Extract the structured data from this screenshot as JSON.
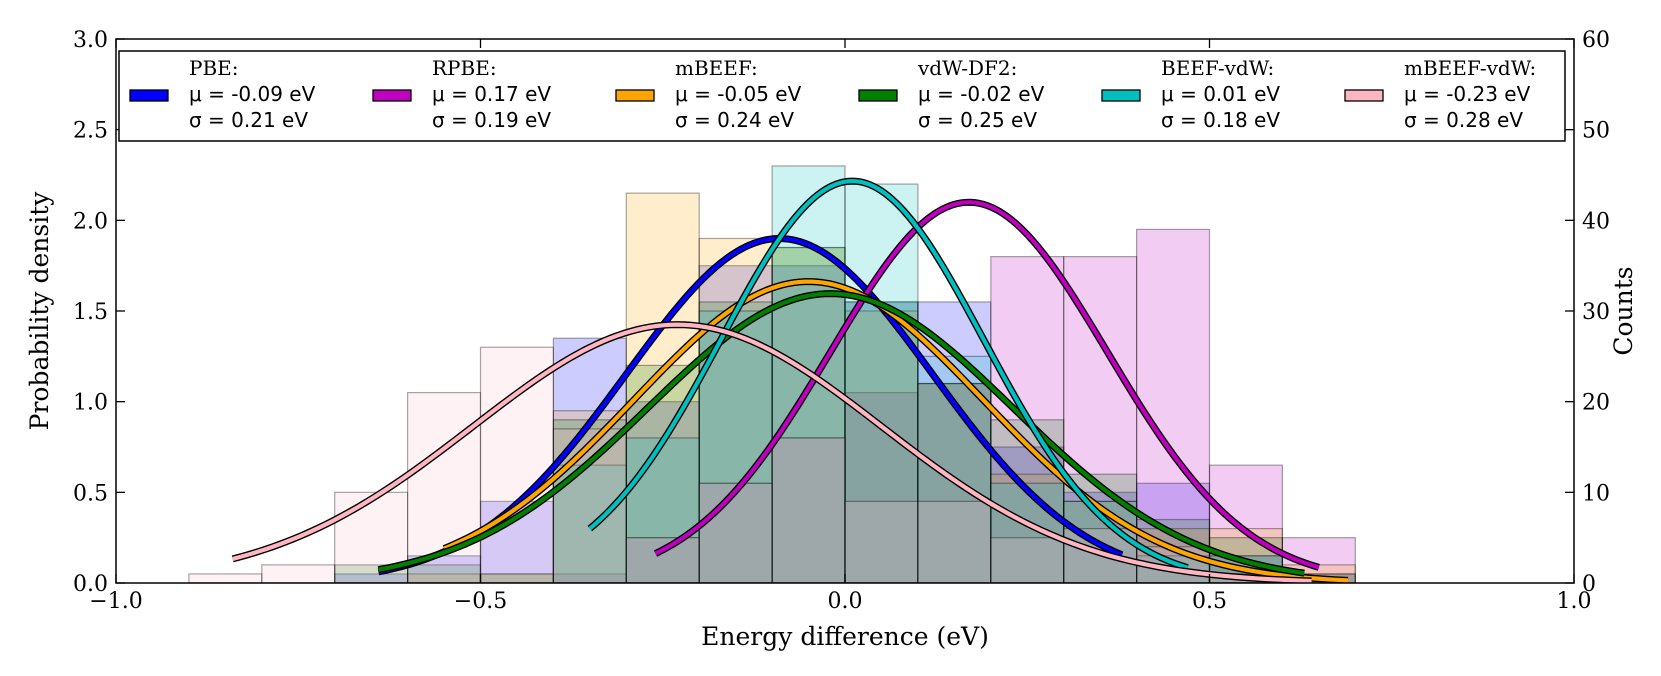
{
  "chart_data": {
    "type": "histogram+line",
    "xlabel": "Energy difference (eV)",
    "ylabel": "Probability density",
    "ylabel_right": "Counts",
    "xlim": [
      -1.0,
      1.0
    ],
    "ylim": [
      0.0,
      3.0
    ],
    "ylim_right": [
      0,
      60
    ],
    "x_ticks": [
      -1.0,
      -0.5,
      0.0,
      0.5,
      1.0
    ],
    "x_tick_labels": [
      "−1.0",
      "−0.5",
      "0.0",
      "0.5",
      "1.0"
    ],
    "y_ticks": [
      0.0,
      0.5,
      1.0,
      1.5,
      2.0,
      2.5,
      3.0
    ],
    "y_tick_labels": [
      "0.0",
      "0.5",
      "1.0",
      "1.5",
      "2.0",
      "2.5",
      "3.0"
    ],
    "y2_ticks": [
      0,
      10,
      20,
      30,
      40,
      50,
      60
    ],
    "y2_tick_labels": [
      "0",
      "10",
      "20",
      "30",
      "40",
      "50",
      "60"
    ],
    "bin_edges": [
      -0.9,
      -0.8,
      -0.7,
      -0.6,
      -0.5,
      -0.4,
      -0.3,
      -0.2,
      -0.1,
      0.0,
      0.1,
      0.2,
      0.3,
      0.4,
      0.5,
      0.6,
      0.7
    ],
    "legend_location": "top (inside, single row)",
    "series": [
      {
        "name": "PBE",
        "label": "PBE:",
        "mu_text": "μ = -0.09 eV",
        "sigma_text": "σ = 0.21 eV",
        "mu": -0.09,
        "sigma": 0.21,
        "curve_range": [
          -0.64,
          0.38
        ],
        "color": "#0000ff",
        "hist_color": "#0000ff",
        "hist_values": [
          0,
          0,
          0.05,
          0.15,
          0.45,
          1.35,
          1.0,
          1.75,
          1.75,
          1.55,
          1.55,
          0.75,
          0.5,
          0.55,
          0.15,
          0.05
        ]
      },
      {
        "name": "RPBE",
        "label": "RPBE:",
        "mu_text": "μ = 0.17 eV",
        "sigma_text": "σ = 0.19 eV",
        "mu": 0.17,
        "sigma": 0.19,
        "curve_range": [
          -0.26,
          0.65
        ],
        "color": "#bf00bf",
        "hist_color": "#bf00bf",
        "hist_values": [
          0,
          0,
          0,
          0,
          0,
          0.05,
          0.25,
          0.55,
          0.8,
          1.05,
          1.1,
          1.8,
          1.8,
          1.95,
          0.65,
          0.25
        ]
      },
      {
        "name": "mBEEF",
        "label": "mBEEF:",
        "mu_text": "μ = -0.05 eV",
        "sigma_text": "σ = 0.24 eV",
        "mu": -0.05,
        "sigma": 0.24,
        "curve_range": [
          -0.55,
          0.69
        ],
        "color": "#ffa500",
        "hist_color": "#ffa500",
        "hist_values": [
          0,
          0,
          0,
          0.05,
          0.05,
          0.95,
          2.15,
          1.9,
          1.85,
          1.5,
          1.1,
          0.6,
          0.45,
          0.3,
          0.3,
          0.1
        ]
      },
      {
        "name": "vdW-DF2",
        "label": "vdW-DF2:",
        "mu_text": "μ = -0.02 eV",
        "sigma_text": "σ = 0.25 eV",
        "mu": -0.02,
        "sigma": 0.25,
        "curve_range": [
          -0.64,
          0.63
        ],
        "color": "#007f00",
        "hist_color": "#007f00",
        "hist_values": [
          0,
          0,
          0.1,
          0.1,
          0.05,
          0.9,
          1.2,
          1.55,
          1.85,
          1.55,
          1.1,
          0.9,
          0.6,
          0.35,
          0.25,
          0.05
        ]
      },
      {
        "name": "BEEF-vdW",
        "label": "BEEF-vdW:",
        "mu_text": "μ = 0.01 eV",
        "sigma_text": "σ = 0.18 eV",
        "mu": 0.01,
        "sigma": 0.18,
        "curve_range": [
          -0.35,
          0.47
        ],
        "color": "#00bfbf",
        "hist_color": "#00bfbf",
        "hist_values": [
          0,
          0,
          0,
          0,
          0,
          0.65,
          0.8,
          1.5,
          2.3,
          2.2,
          1.25,
          0.55,
          0.45,
          0.15,
          0.15,
          0
        ]
      },
      {
        "name": "mBEEF-vdW",
        "label": "mBEEF-vdW:",
        "mu_text": "μ = -0.23 eV",
        "sigma_text": "σ = 0.28 eV",
        "mu": -0.23,
        "sigma": 0.28,
        "curve_range": [
          -0.84,
          0.64
        ],
        "color": "#ffb6c1",
        "hist_color": "#ffc0cb",
        "hist_values": [
          0.05,
          0.1,
          0.5,
          1.05,
          1.3,
          0.85,
          0.25,
          0.55,
          0.8,
          0.45,
          0.45,
          0.25,
          0.3,
          0.2,
          0.05,
          0
        ]
      }
    ]
  }
}
